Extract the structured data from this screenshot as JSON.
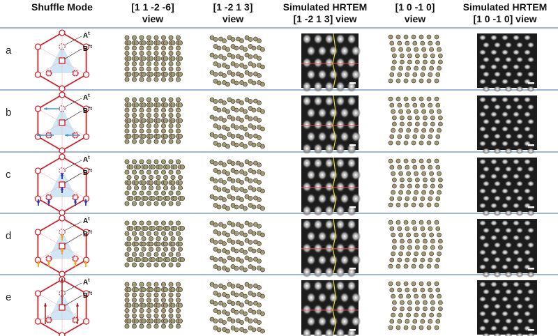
{
  "headers": [
    {
      "lines": [
        "Shuffle Mode"
      ]
    },
    {
      "lines": [
        "[1 1 -2 -6]",
        "view"
      ]
    },
    {
      "lines": [
        "[1 -2 1 3]",
        "view"
      ]
    },
    {
      "lines": [
        "Simulated HRTEM",
        "[1 -2 1 3] view"
      ]
    },
    {
      "lines": [
        "[1 0 -1 0]",
        "view"
      ]
    },
    {
      "lines": [
        "Simulated HRTEM",
        "[1 0 -1 0] view"
      ]
    }
  ],
  "rows": [
    {
      "label": "a",
      "site_a": "A",
      "site_a_sup": "t",
      "site_b": "B",
      "site_b_sup": "\"t",
      "arrow_style": "none",
      "arrow_color": "#d0202a"
    },
    {
      "label": "b",
      "site_a": "A",
      "site_a_sup": "t",
      "site_b": "B",
      "site_b_sup": "\"t",
      "arrow_style": "horizontal",
      "arrow_color": "#3a9ad9"
    },
    {
      "label": "c",
      "site_a": "A",
      "site_a_sup": "t",
      "site_b": "B",
      "site_b_sup": "\"t",
      "arrow_style": "small-up",
      "arrow_color": "#2233bb"
    },
    {
      "label": "d",
      "site_a": "A",
      "site_a_sup": "t",
      "site_b": "B",
      "site_b_sup": "\"t",
      "arrow_style": "small-up",
      "arrow_color": "#f2a51c"
    },
    {
      "label": "e",
      "site_a": "A",
      "site_a_sup": "t",
      "site_b": "B",
      "site_b_sup": "\"t",
      "arrow_style": "long-up",
      "arrow_color": "#a01818"
    }
  ],
  "colors": {
    "frame": "#d0202a",
    "triangle_fill": "#cfe6f4",
    "atom_fill": "#a29a78",
    "atom_stroke": "#4e4a36",
    "separator": "#9db7d6",
    "hrtem_trace_red": "#e05560",
    "hrtem_trace_yellow": "#e8e040"
  }
}
